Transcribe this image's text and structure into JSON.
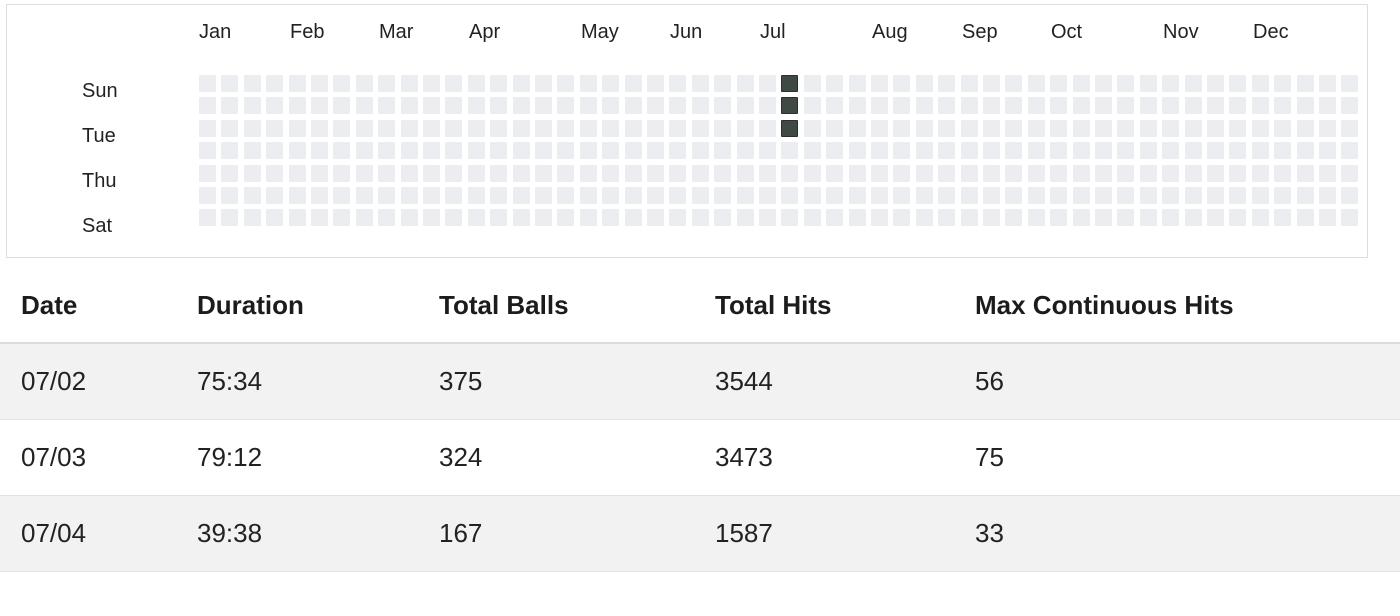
{
  "heatmap": {
    "months": [
      "Jan",
      "Feb",
      "Mar",
      "Apr",
      "May",
      "Jun",
      "Jul",
      "Aug",
      "Sep",
      "Oct",
      "Nov",
      "Dec"
    ],
    "day_labels": [
      "Sun",
      "Tue",
      "Thu",
      "Sat"
    ],
    "weeks": 52,
    "days_per_week": 7,
    "active_days": [
      {
        "week": 26,
        "day": 0
      },
      {
        "week": 26,
        "day": 1
      },
      {
        "week": 26,
        "day": 2
      }
    ],
    "colors": {
      "empty": "#ebedf0",
      "active": "#3f4a45"
    }
  },
  "table": {
    "headers": {
      "date": "Date",
      "duration": "Duration",
      "total_balls": "Total Balls",
      "total_hits": "Total Hits",
      "max_continuous_hits": "Max Continuous Hits"
    },
    "rows": [
      {
        "date": "07/02",
        "duration": "75:34",
        "total_balls": "375",
        "total_hits": "3544",
        "max_continuous_hits": "56"
      },
      {
        "date": "07/03",
        "duration": "79:12",
        "total_balls": "324",
        "total_hits": "3473",
        "max_continuous_hits": "75"
      },
      {
        "date": "07/04",
        "duration": "39:38",
        "total_balls": "167",
        "total_hits": "1587",
        "max_continuous_hits": "33"
      }
    ]
  }
}
